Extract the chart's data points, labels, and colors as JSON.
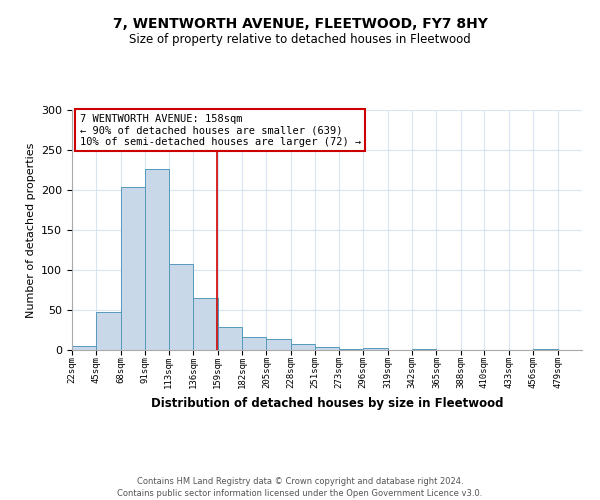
{
  "title": "7, WENTWORTH AVENUE, FLEETWOOD, FY7 8HY",
  "subtitle": "Size of property relative to detached houses in Fleetwood",
  "xlabel": "Distribution of detached houses by size in Fleetwood",
  "ylabel": "Number of detached properties",
  "footnote1": "Contains HM Land Registry data © Crown copyright and database right 2024.",
  "footnote2": "Contains public sector information licensed under the Open Government Licence v3.0.",
  "property_label": "7 WENTWORTH AVENUE: 158sqm",
  "annotation_left": "← 90% of detached houses are smaller (639)",
  "annotation_right": "10% of semi-detached houses are larger (72) →",
  "property_size": 158,
  "bar_color": "#c8d8e8",
  "bar_edge_color": "#5599bb",
  "vline_color": "#cc0000",
  "annotation_box_edge": "#cc0000",
  "grid_color": "#d8e4f0",
  "background_color": "#ffffff",
  "bins": [
    22,
    45,
    68,
    91,
    113,
    136,
    159,
    182,
    205,
    228,
    251,
    273,
    296,
    319,
    342,
    365,
    388,
    410,
    433,
    456,
    479
  ],
  "counts": [
    5,
    47,
    204,
    226,
    108,
    65,
    29,
    16,
    14,
    7,
    4,
    1,
    2,
    0,
    1,
    0,
    0,
    0,
    0,
    1
  ],
  "ylim": [
    0,
    300
  ],
  "xlim": [
    22,
    502
  ]
}
